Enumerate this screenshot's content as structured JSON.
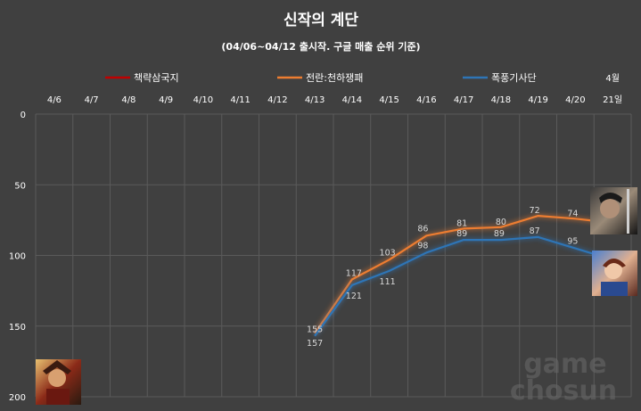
{
  "chart_data": {
    "type": "line",
    "title": "신작의 계단",
    "subtitle": "(04/06~04/12 출시작. 구글 매출 순위 기준)",
    "categories": [
      "4/6",
      "4/7",
      "4/8",
      "4/9",
      "4/10",
      "4/11",
      "4/12",
      "4/13",
      "4/14",
      "4/15",
      "4/16",
      "4/17",
      "4/18",
      "4/19",
      "4/20",
      "4월 21일"
    ],
    "category_lines": [
      [
        "4/6"
      ],
      [
        "4/7"
      ],
      [
        "4/8"
      ],
      [
        "4/9"
      ],
      [
        "4/10"
      ],
      [
        "4/11"
      ],
      [
        "4/12"
      ],
      [
        "4/13"
      ],
      [
        "4/14"
      ],
      [
        "4/15"
      ],
      [
        "4/16"
      ],
      [
        "4/17"
      ],
      [
        "4/18"
      ],
      [
        "4/19"
      ],
      [
        "4/20"
      ],
      [
        "4월",
        "21일"
      ]
    ],
    "y_axis": {
      "reversed": true,
      "min": 0,
      "max": 200,
      "ticks": [
        0,
        50,
        100,
        150,
        200
      ]
    },
    "grid": true,
    "legend_position": "top",
    "series": [
      {
        "name": "책략삼국지",
        "color": "#c00000",
        "values": [
          null,
          null,
          null,
          null,
          null,
          null,
          null,
          null,
          null,
          null,
          null,
          null,
          null,
          null,
          null,
          null
        ]
      },
      {
        "name": "전란:천하쟁패",
        "color": "#ed7d31",
        "values": [
          null,
          null,
          null,
          null,
          null,
          null,
          null,
          155,
          117,
          103,
          86,
          81,
          80,
          72,
          74,
          77
        ]
      },
      {
        "name": "폭풍기사단",
        "color": "#2e75b6",
        "values": [
          null,
          null,
          null,
          null,
          null,
          null,
          null,
          157,
          121,
          111,
          98,
          89,
          89,
          87,
          95,
          103
        ]
      }
    ]
  },
  "watermark": {
    "line1": "game",
    "line2": "chosun"
  },
  "icons": [
    "warrior-portrait-icon",
    "knight-portrait-icon",
    "hero-portrait-icon"
  ]
}
